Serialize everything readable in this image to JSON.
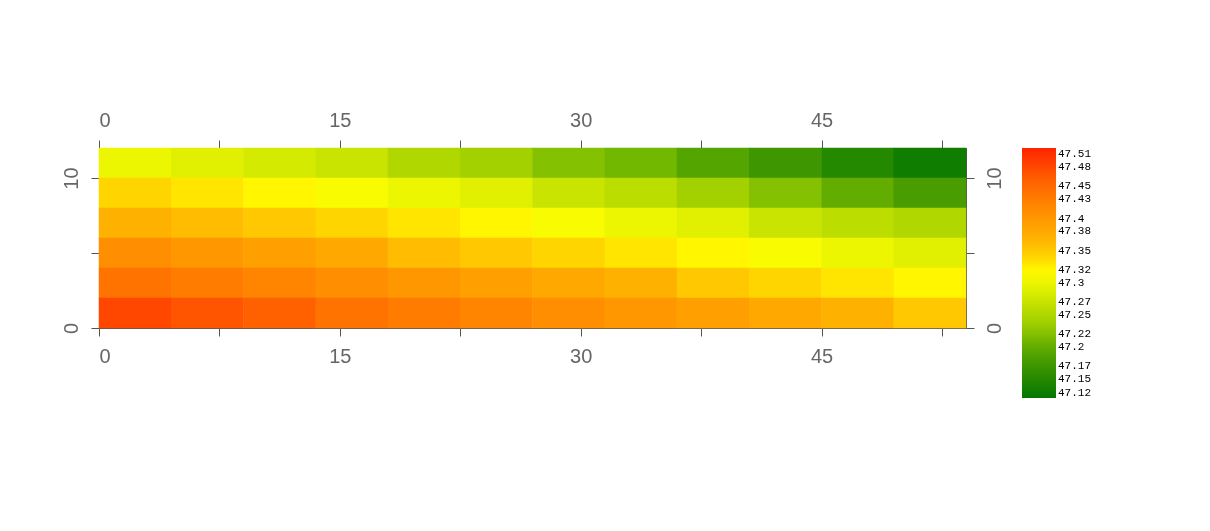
{
  "chart_data": {
    "type": "heatmap",
    "x": [
      2.25,
      6.75,
      11.25,
      15.75,
      20.25,
      24.75,
      29.25,
      33.75,
      38.25,
      42.75,
      47.25,
      51.75
    ],
    "y": [
      11,
      9,
      7,
      5,
      3,
      1
    ],
    "cells": [
      [
        47.3,
        47.29,
        47.28,
        47.27,
        47.25,
        47.24,
        47.22,
        47.21,
        47.19,
        47.17,
        47.15,
        47.13
      ],
      [
        47.34,
        47.33,
        47.32,
        47.31,
        47.3,
        47.29,
        47.27,
        47.26,
        47.24,
        47.22,
        47.2,
        47.18
      ],
      [
        47.37,
        47.36,
        47.35,
        47.34,
        47.33,
        47.32,
        47.31,
        47.3,
        47.29,
        47.27,
        47.26,
        47.25
      ],
      [
        47.41,
        47.4,
        47.39,
        47.38,
        47.36,
        47.35,
        47.34,
        47.33,
        47.32,
        47.31,
        47.3,
        47.29
      ],
      [
        47.44,
        47.43,
        47.42,
        47.41,
        47.4,
        47.39,
        47.38,
        47.37,
        47.35,
        47.34,
        47.33,
        47.32
      ],
      [
        47.48,
        47.47,
        47.46,
        47.44,
        47.43,
        47.42,
        47.41,
        47.4,
        47.39,
        47.38,
        47.37,
        47.35
      ]
    ],
    "xlim": [
      0,
      54
    ],
    "ylim": [
      0,
      12
    ],
    "x2lim": [
      0,
      54
    ],
    "y2lim": [
      0,
      12
    ],
    "xticks": [
      0,
      {
        "value": 7.5,
        "label": null
      },
      15,
      {
        "value": 22.5,
        "label": null
      },
      30,
      {
        "value": 37.5,
        "label": null
      },
      45,
      {
        "value": 52.5,
        "label": null
      }
    ],
    "x2ticks": [
      0,
      {
        "value": 7.5,
        "label": null
      },
      15,
      {
        "value": 22.5,
        "label": null
      },
      30,
      {
        "value": 37.5,
        "label": null
      },
      45,
      {
        "value": 52.5,
        "label": null
      }
    ],
    "yticks": [
      0,
      {
        "value": 5,
        "label": null
      },
      10
    ],
    "y2ticks": [
      0,
      {
        "value": 5,
        "label": null
      },
      10
    ],
    "clim": [
      47.12,
      47.51
    ],
    "cticks": [
      47.51,
      47.48,
      47.45,
      47.43,
      47.4,
      47.38,
      47.35,
      47.32,
      47.3,
      47.27,
      47.25,
      47.22,
      47.2,
      47.17,
      47.15,
      47.12
    ],
    "colors": [
      "#007700",
      "#228800",
      "#449900",
      "#66b000",
      "#99cc00",
      "#bbdd00",
      "#ddee00",
      "#ffff00",
      "#ffd000",
      "#ffb000",
      "#ff9900",
      "#ff7f00",
      "#ff6600",
      "#ff4400",
      "#ff2200"
    ]
  }
}
